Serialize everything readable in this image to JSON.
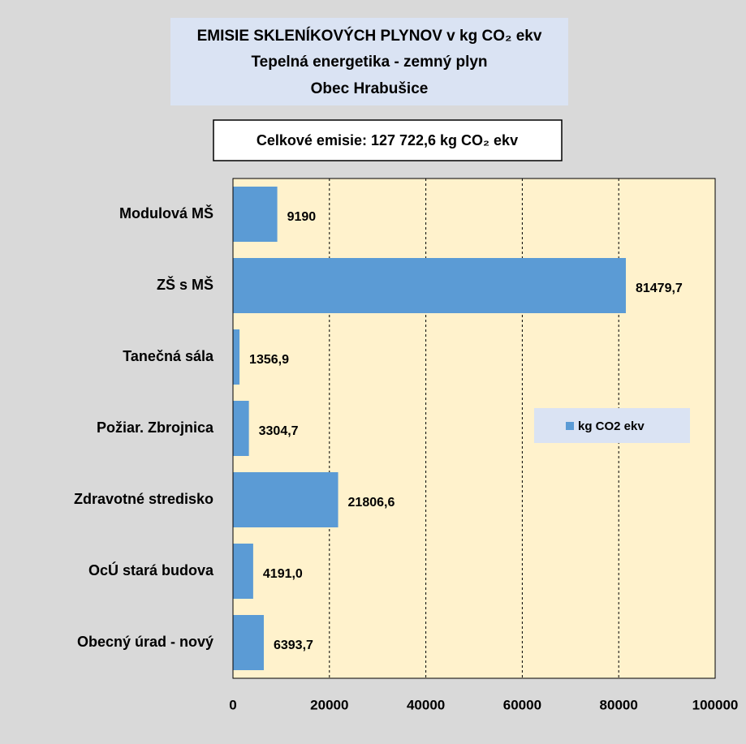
{
  "chart_data": {
    "type": "barh",
    "title": "EMISIE SKLENÍKOVÝCH PLYNOV v kg CO₂ ekv",
    "subtitle": [
      "Tepelná energetika - zemný plyn",
      "Obec Hrabušice"
    ],
    "annotation": "Celkové emisie: 127 722,6 kg CO₂ ekv",
    "categories": [
      "Modulová MŠ",
      "ZŠ s MŠ",
      "Tanečná sála",
      "Požiar. Zbrojnica",
      "Zdravotné stredisko",
      "OcÚ stará budova",
      "Obecný úrad - nový"
    ],
    "series": [
      {
        "name": "kg CO2 ekv",
        "color": "#5b9bd5",
        "values": [
          9190,
          81479.7,
          1356.9,
          3304.7,
          21806.6,
          4191.0,
          6393.7
        ],
        "value_labels": [
          "9190",
          "81479,7",
          "1356,9",
          "3304,7",
          "21806,6",
          "4191,0",
          "6393,7"
        ]
      }
    ],
    "xlim": [
      0,
      100000
    ],
    "xticks": [
      0,
      20000,
      40000,
      60000,
      80000,
      100000
    ],
    "grid": true,
    "legend": "right"
  }
}
